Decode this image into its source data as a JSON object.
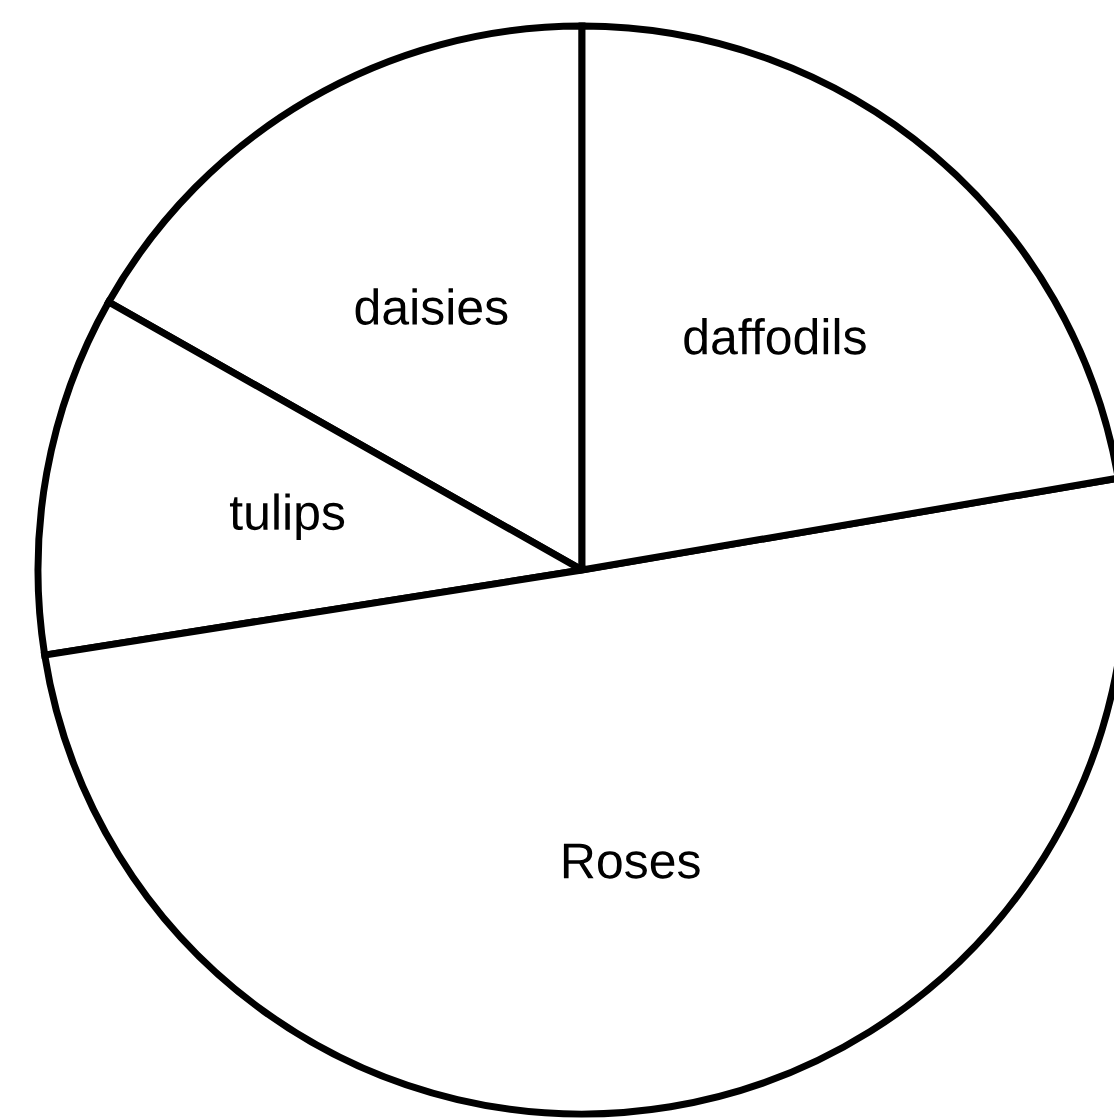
{
  "chart_data": {
    "type": "pie",
    "categories": [
      "daisies",
      "tulips",
      "Roses",
      "daffodils"
    ],
    "values": [
      16.8,
      10.7,
      50.2,
      22.3
    ],
    "colors": [
      "#ffffff",
      "#ffffff",
      "#ffffff",
      "#ffffff"
    ]
  }
}
